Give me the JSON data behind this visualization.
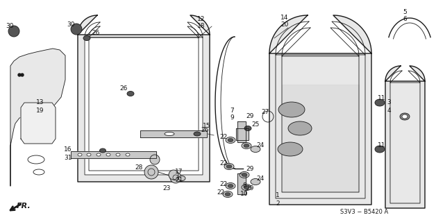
{
  "bg_color": "#ffffff",
  "line_color": "#1a1a1a",
  "diagram_code": "S3V3 − B5420 A",
  "font_size": 6.5,
  "label_color": "#111111"
}
